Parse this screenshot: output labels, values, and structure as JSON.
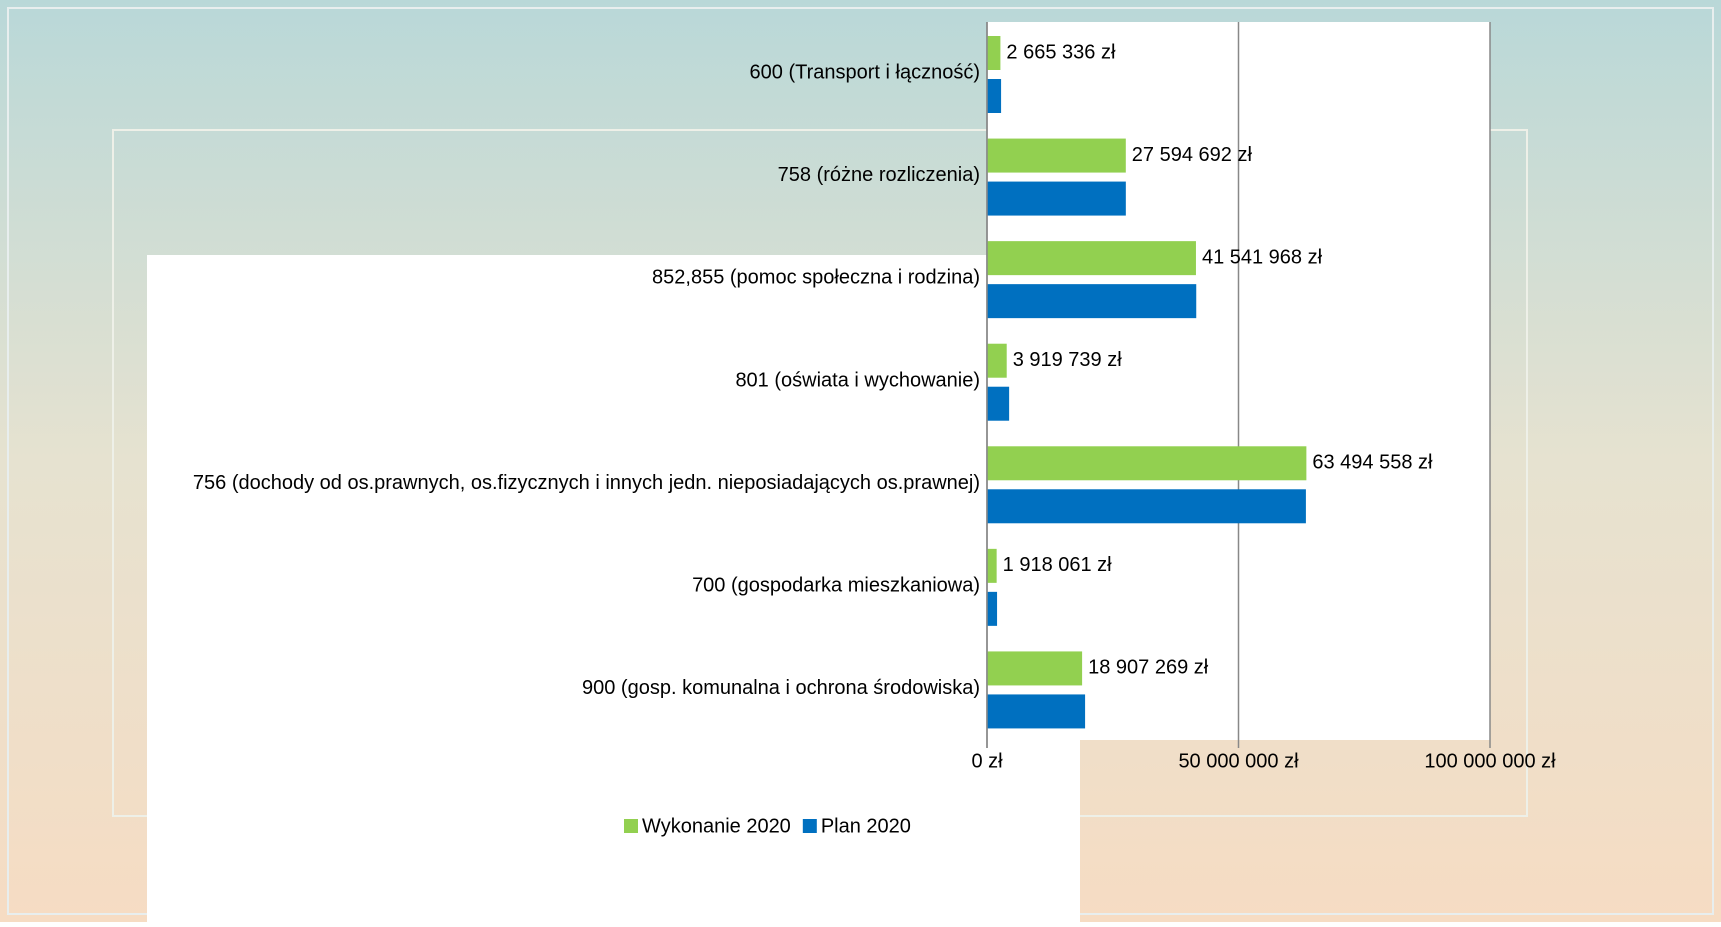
{
  "chart_data": {
    "type": "bar",
    "orientation": "horizontal",
    "categories": [
      "600 (Transport i łączność)",
      "758 (różne rozliczenia)",
      "852,855 (pomoc społeczna i rodzina)",
      "801 (oświata i wychowanie)",
      "756 (dochody od os.prawnych, os.fizycznych i innych jedn. nieposiadających os.prawnej)",
      "700 (gospodarka mieszkaniowa)",
      "900 (gosp. komunalna i ochrona środowiska)"
    ],
    "series": [
      {
        "name": "Wykonanie 2020",
        "color": "#92d050",
        "values": [
          2665336,
          27594692,
          41541968,
          3919739,
          63494558,
          1918061,
          18907269
        ],
        "value_labels": [
          "2 665 336 zł",
          "27 594 692 zł",
          "41 541 968 zł",
          "3 919 739 zł",
          "63 494 558 zł",
          "1 918 061 zł",
          "18 907 269 zł"
        ]
      },
      {
        "name": "Plan 2020",
        "color": "#0070c0",
        "values": [
          2800000,
          27600000,
          41600000,
          4400000,
          63400000,
          2000000,
          19500000
        ]
      }
    ],
    "xlim": [
      0,
      100000000
    ],
    "xticks": [
      {
        "value": 0,
        "label": "0 zł"
      },
      {
        "value": 50000000,
        "label": "50 000 000 zł"
      },
      {
        "value": 100000000,
        "label": "100 000 000 zł"
      }
    ],
    "grid": true,
    "legend": "bottom"
  }
}
